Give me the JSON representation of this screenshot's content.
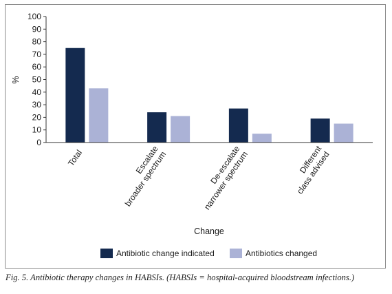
{
  "caption": "Fig. 5. Antibiotic therapy changes in HABSIs. (HABSIs = hospital-acquired bloodstream infections.)",
  "chart_data": {
    "type": "bar",
    "ylabel": "%",
    "xlabel": "Change",
    "ylim": [
      0,
      100
    ],
    "yticks": [
      0,
      10,
      20,
      30,
      40,
      50,
      60,
      70,
      80,
      90,
      100
    ],
    "grid": false,
    "legend_position": "bottom",
    "categories": [
      [
        "Total"
      ],
      [
        "Escalate",
        "broader spectrum"
      ],
      [
        "De-escalate",
        "narrower spectrum"
      ],
      [
        "Different",
        "class advised"
      ]
    ],
    "series": [
      {
        "name": "Antibiotic change indicated",
        "color": "#142a4f",
        "values": [
          75,
          24,
          27,
          19
        ]
      },
      {
        "name": "Antibiotics changed",
        "color": "#abb2d6",
        "values": [
          43,
          21,
          7,
          15
        ]
      }
    ]
  }
}
